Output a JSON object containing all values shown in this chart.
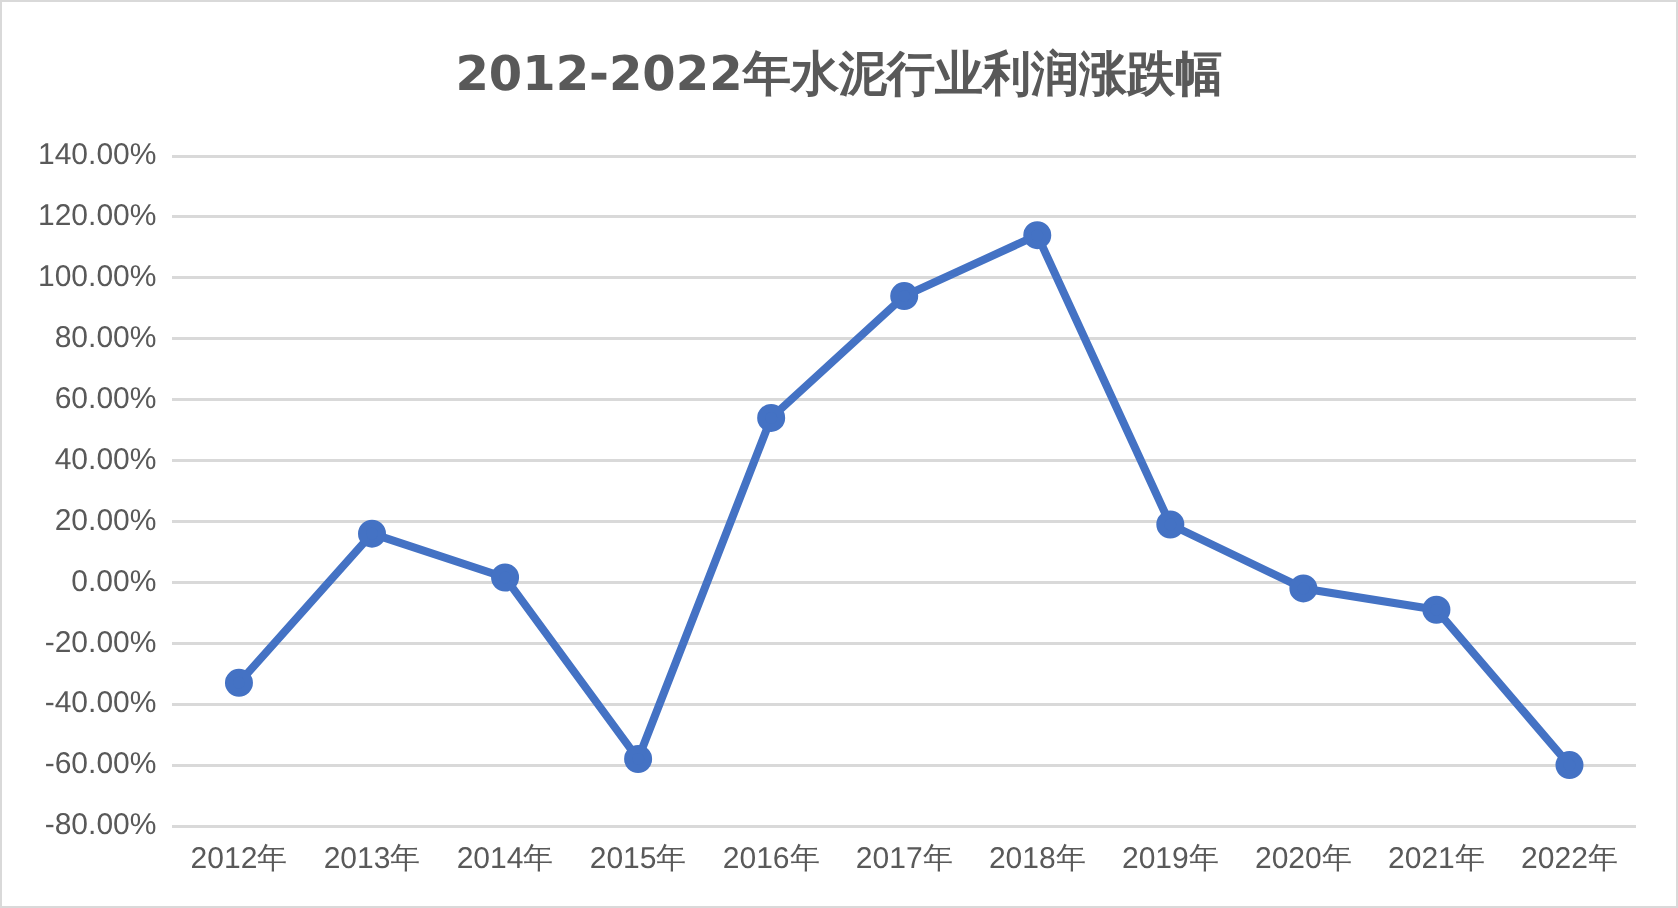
{
  "chart_data": {
    "type": "line",
    "title": "2012-2022年水泥行业利润涨跌幅",
    "categories": [
      "2012年",
      "2013年",
      "2014年",
      "2015年",
      "2016年",
      "2017年",
      "2018年",
      "2019年",
      "2020年",
      "2021年",
      "2022年"
    ],
    "series": [
      {
        "color": "#4472c4",
        "values": [
          -33,
          16,
          1.6,
          -58,
          54,
          94,
          114,
          19,
          -2,
          -9,
          -60
        ]
      }
    ],
    "ylim": [
      -80,
      140
    ],
    "yticks": [
      {
        "value": -80,
        "label": "-80.00%"
      },
      {
        "value": -60,
        "label": "-60.00%"
      },
      {
        "value": -40,
        "label": "-40.00%"
      },
      {
        "value": -20,
        "label": "-20.00%"
      },
      {
        "value": 0,
        "label": "0.00%"
      },
      {
        "value": 20,
        "label": "20.00%"
      },
      {
        "value": 40,
        "label": "40.00%"
      },
      {
        "value": 60,
        "label": "60.00%"
      },
      {
        "value": 80,
        "label": "80.00%"
      },
      {
        "value": 100,
        "label": "100.00%"
      },
      {
        "value": 120,
        "label": "120.00%"
      },
      {
        "value": 140,
        "label": "140.00%"
      }
    ],
    "grid": "y",
    "legend": false,
    "marker": "circle",
    "line_style": "solid"
  }
}
